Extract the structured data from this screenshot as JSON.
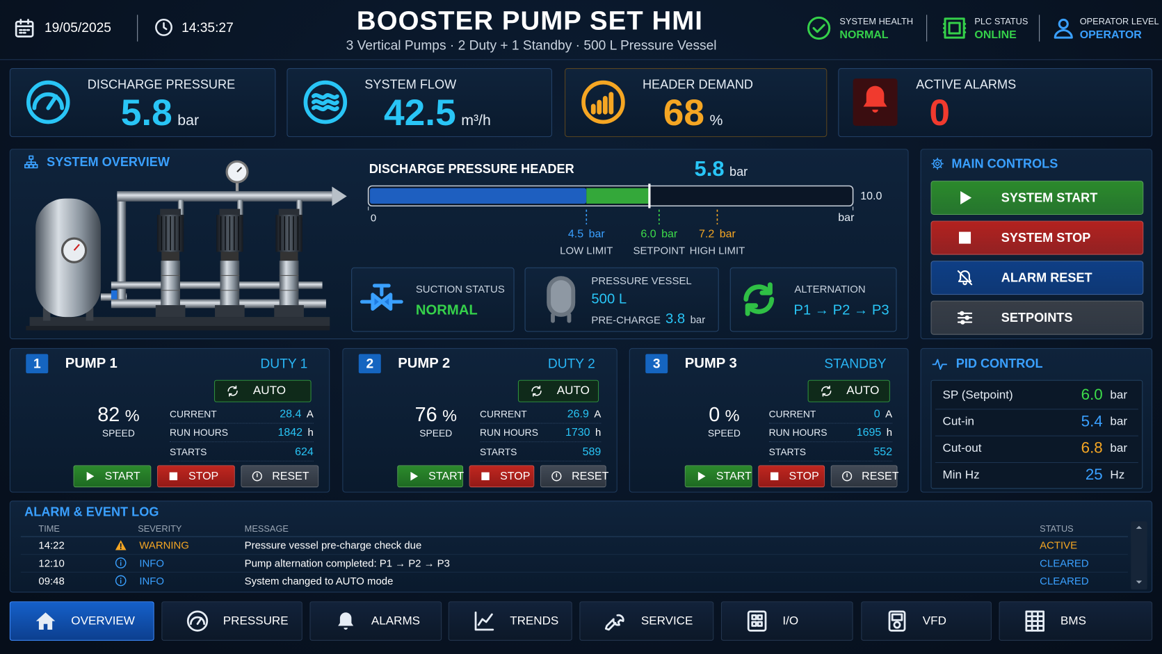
{
  "header": {
    "date": "19/05/2025",
    "time": "14:35:27",
    "title": "BOOSTER PUMP SET HMI",
    "subtitle": "3 Vertical Pumps · 2 Duty + 1 Standby · 500 L Pressure Vessel",
    "status": [
      {
        "label": "SYSTEM HEALTH",
        "value": "NORMAL",
        "color": "#35d04a"
      },
      {
        "label": "PLC STATUS",
        "value": "ONLINE",
        "color": "#35d04a"
      },
      {
        "label": "OPERATOR LEVEL",
        "value": "OPERATOR",
        "color": "#3aa0ff"
      }
    ]
  },
  "kpis": [
    {
      "label": "DISCHARGE PRESSURE",
      "value": 5.8,
      "unit": "bar",
      "color": "#29c5f6"
    },
    {
      "label": "SYSTEM FLOW",
      "value": 42.5,
      "unit": "m³/h",
      "color": "#29c5f6"
    },
    {
      "label": "HEADER DEMAND",
      "value": 68,
      "unit": "%",
      "color": "#f5a623"
    },
    {
      "label": "ACTIVE ALARMS",
      "value": 0,
      "color": "#f03a2e"
    }
  ],
  "overview": {
    "title": "SYSTEM OVERVIEW",
    "header_bar": {
      "title": "DISCHARGE PRESSURE HEADER",
      "value": 5.8,
      "unit": "bar",
      "range": [
        0,
        {
          "value": 10,
          "label": "10.0"
        }
      ],
      "range_unit": "bar",
      "markers": [
        {
          "value": 4.5,
          "unit": "bar",
          "name": "LOW LIMIT",
          "color": "#3aa0ff"
        },
        {
          "value": 6,
          "value_label": "6.0",
          "unit": "bar",
          "name": "SETPOINT",
          "color": "#3ddc4a"
        },
        {
          "value": 7.2,
          "unit": "bar",
          "name": "HIGH LIMIT",
          "color": "#f5a623"
        }
      ]
    },
    "suction": {
      "label": "SUCTION STATUS",
      "value": "NORMAL"
    },
    "vessel": {
      "label": "PRESSURE VESSEL",
      "size": "500 L",
      "precharge_label": "PRE-CHARGE",
      "precharge": 3.8,
      "unit": "bar"
    },
    "alternation": {
      "label": "ALTERNATION",
      "sequence": "P1 → P2 → P3"
    }
  },
  "controls": {
    "title": "MAIN CONTROLS",
    "buttons": [
      {
        "label": "SYSTEM START",
        "color": "#2c8a2c"
      },
      {
        "label": "SYSTEM STOP",
        "color": "#b3221f"
      },
      {
        "label": "ALARM RESET",
        "color": "#0f3f86"
      },
      {
        "label": "SETPOINTS",
        "color": "#383e47"
      }
    ]
  },
  "pump_labels": {
    "speed": "SPEED",
    "speed_unit": "%",
    "current": "CURRENT",
    "current_unit": "A",
    "run_hours": "RUN HOURS",
    "hours_unit": "h",
    "starts": "STARTS",
    "start": "START",
    "stop": "STOP",
    "reset": "RESET"
  },
  "pumps": [
    {
      "number": 1,
      "name": "PUMP 1",
      "role": "DUTY 1",
      "mode": "AUTO",
      "speed": 82,
      "current": 28.4,
      "run_hours": 1842,
      "starts": 624
    },
    {
      "number": 2,
      "name": "PUMP 2",
      "role": "DUTY 2",
      "mode": "AUTO",
      "speed": 76,
      "current": 26.9,
      "run_hours": 1730,
      "starts": 589
    },
    {
      "number": 3,
      "name": "PUMP 3",
      "role": "STANDBY",
      "mode": "AUTO",
      "speed": 0,
      "current": 0,
      "run_hours": 1695,
      "starts": 552
    }
  ],
  "pid": {
    "title": "PID CONTROL",
    "rows": [
      {
        "label": "SP (Setpoint)",
        "value": 6,
        "value_label": "6.0",
        "unit": "bar",
        "color": "#3ddc4a"
      },
      {
        "label": "Cut-in",
        "value": 5.4,
        "unit": "bar",
        "color": "#3aa0ff"
      },
      {
        "label": "Cut-out",
        "value": 6.8,
        "unit": "bar",
        "color": "#f5a623"
      },
      {
        "label": "Min Hz",
        "value": 25,
        "unit": "Hz",
        "color": "#3aa0ff"
      }
    ]
  },
  "alarm_log": {
    "title": "ALARM & EVENT LOG",
    "columns": [
      "TIME",
      "SEVERITY",
      "MESSAGE",
      "STATUS"
    ],
    "rows": [
      {
        "time": "14:22",
        "severity": "WARNING",
        "message": "Pressure vessel pre-charge check due",
        "status": "ACTIVE",
        "color": "#f5a623"
      },
      {
        "time": "12:10",
        "severity": "INFO",
        "message": "Pump alternation completed: P1 → P2 → P3",
        "status": "CLEARED",
        "color": "#3aa0ff"
      },
      {
        "time": "09:48",
        "severity": "INFO",
        "message": "System changed to AUTO mode",
        "status": "CLEARED",
        "color": "#3aa0ff"
      }
    ]
  },
  "nav": [
    {
      "label": "OVERVIEW",
      "active": true
    },
    {
      "label": "PRESSURE"
    },
    {
      "label": "ALARMS"
    },
    {
      "label": "TRENDS"
    },
    {
      "label": "SERVICE"
    },
    {
      "label": "I/O"
    },
    {
      "label": "VFD"
    },
    {
      "label": "BMS"
    }
  ]
}
